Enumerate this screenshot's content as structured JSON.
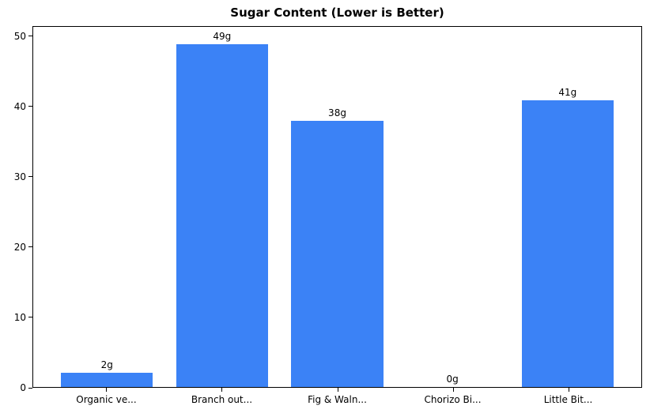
{
  "chart_data": {
    "type": "bar",
    "title": "Sugar Content (Lower is Better)",
    "categories": [
      "Organic ve...",
      "Branch out...",
      "Fig & Waln...",
      "Chorizo Bi...",
      "Little Bit..."
    ],
    "values": [
      2,
      49,
      38,
      0,
      41
    ],
    "bar_labels": [
      "2g",
      "49g",
      "38g",
      "0g",
      "41g"
    ],
    "unit": "g",
    "yticks": [
      0,
      10,
      20,
      30,
      40,
      50
    ],
    "ylim": [
      0,
      51.45
    ],
    "xlabel": "",
    "ylabel": "",
    "grid": false,
    "legend": null,
    "colors": {
      "bar": "#3b82f6",
      "text": "#000000",
      "spine": "#000000",
      "background": "#ffffff"
    }
  }
}
